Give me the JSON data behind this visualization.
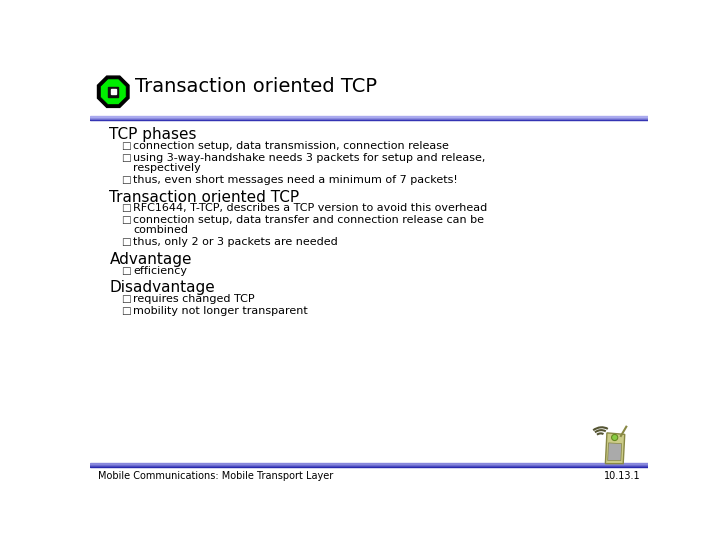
{
  "title": "Transaction oriented TCP",
  "title_fontsize": 14,
  "title_color": "#000000",
  "bg_color": "#ffffff",
  "sections": [
    {
      "heading": "TCP phases",
      "bullets": [
        [
          "connection setup, data transmission, connection release"
        ],
        [
          "using 3-way-handshake needs 3 packets for setup and release,",
          "    respectively"
        ],
        [
          "thus, even short messages need a minimum of 7 packets!"
        ]
      ]
    },
    {
      "heading": "Transaction oriented TCP",
      "bullets": [
        [
          "RFC1644, T-TCP, describes a TCP version to avoid this overhead"
        ],
        [
          "connection setup, data transfer and connection release can be",
          "    combined"
        ],
        [
          "thus, only 2 or 3 packets are needed"
        ]
      ]
    },
    {
      "heading": "Advantage",
      "bullets": [
        [
          "efficiency"
        ]
      ]
    },
    {
      "heading": "Disadvantage",
      "bullets": [
        [
          "requires changed TCP"
        ],
        [
          "mobility not longer transparent"
        ]
      ]
    }
  ],
  "footer_left": "Mobile Communications: Mobile Transport Layer",
  "footer_right": "10.13.1",
  "footer_fontsize": 7,
  "bullet_fontsize": 8,
  "heading_fontsize": 11,
  "header_bar_colors": [
    "#3333aa",
    "#5555cc",
    "#7777dd",
    "#9999ee"
  ],
  "footer_bar_colors": [
    "#3333aa",
    "#5555cc",
    "#7777dd",
    "#9999ee"
  ]
}
